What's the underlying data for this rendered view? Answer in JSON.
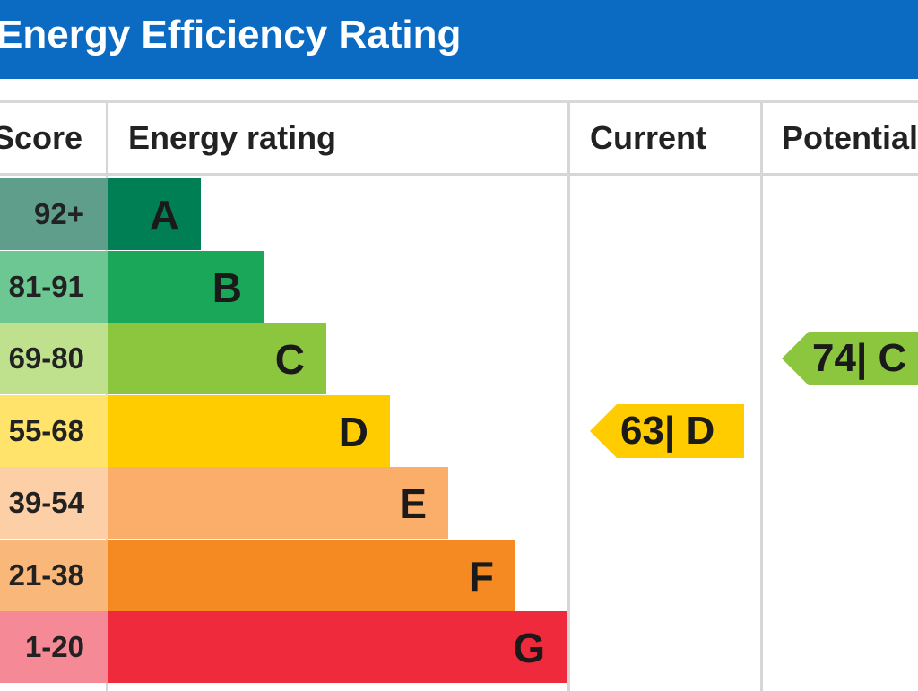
{
  "chart_data": {
    "type": "bar",
    "title": "Energy Efficiency Rating",
    "columns": {
      "score": "Score",
      "rating": "Energy rating",
      "current": "Current",
      "potential": "Potential"
    },
    "bands": [
      {
        "letter": "A",
        "range": "92+",
        "color": "#007f55",
        "tint": "#5f9e8a"
      },
      {
        "letter": "B",
        "range": "81-91",
        "color": "#1aa75a",
        "tint": "#6dc792"
      },
      {
        "letter": "C",
        "range": "69-80",
        "color": "#8cc63f",
        "tint": "#bfe08c"
      },
      {
        "letter": "D",
        "range": "55-68",
        "color": "#ffcc00",
        "tint": "#ffe36b"
      },
      {
        "letter": "E",
        "range": "39-54",
        "color": "#fbad6a",
        "tint": "#fdcfa6"
      },
      {
        "letter": "F",
        "range": "21-38",
        "color": "#f68a22",
        "tint": "#f9b77a"
      },
      {
        "letter": "G",
        "range": "1-20",
        "color": "#ee2a3c",
        "tint": "#f58a96"
      }
    ],
    "current": {
      "value": 63,
      "band": "D",
      "label": "63| D",
      "color": "#ffcc00"
    },
    "potential": {
      "value": 74,
      "band": "C",
      "label": "74| C",
      "color": "#8cc63f"
    }
  }
}
